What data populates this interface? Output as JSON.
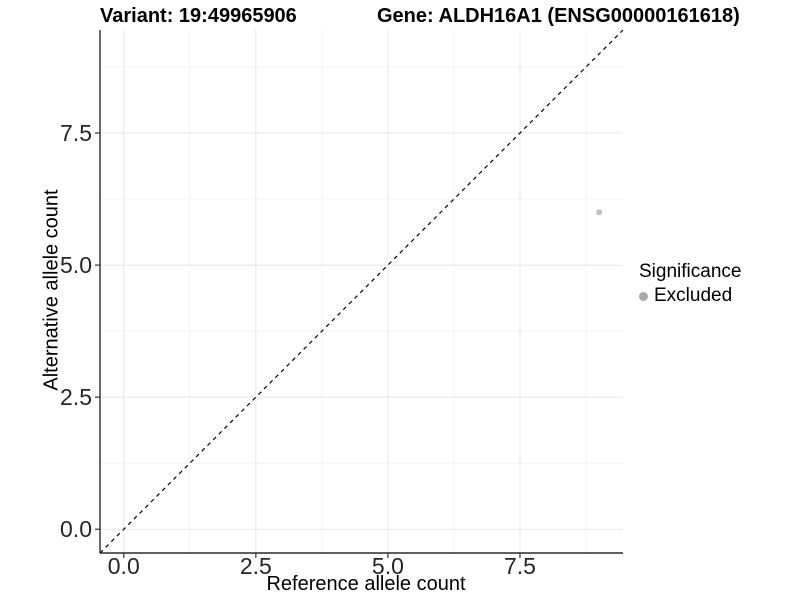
{
  "header": {
    "variant_title": "Variant: 19:49965906",
    "gene_title": "Gene: ALDH16A1 (ENSG00000161618)"
  },
  "chart_data": {
    "type": "scatter",
    "title": "Variant: 19:49965906  |  Gene: ALDH16A1 (ENSG00000161618)",
    "xlabel": "Reference allele count",
    "ylabel": "Alternative allele count",
    "xlim": [
      -0.45,
      9.45
    ],
    "ylim": [
      -0.45,
      9.45
    ],
    "xticks": {
      "values": [
        0,
        2.5,
        5,
        7.5
      ],
      "labels": [
        "0.0",
        "2.5",
        "5.0",
        "7.5"
      ]
    },
    "yticks": {
      "values": [
        0,
        2.5,
        5,
        7.5
      ],
      "labels": [
        "0.0",
        "2.5",
        "5.0",
        "7.5"
      ]
    },
    "minor_xticks": [
      1.25,
      3.75,
      6.25,
      8.75
    ],
    "minor_yticks": [
      1.25,
      3.75,
      6.25,
      8.75
    ],
    "grid": {
      "major_color": "#e8e8e8",
      "minor_color": "#f3f3f3"
    },
    "reference_line": {
      "kind": "identity",
      "slope": 1,
      "intercept": 0,
      "style": "dashed",
      "color": "#000000"
    },
    "series": [
      {
        "name": "Excluded",
        "color": "#c2c2c2",
        "point_radius": 3,
        "points": [
          {
            "x": 9,
            "y": 6
          }
        ]
      }
    ],
    "legend": {
      "title": "Significance",
      "position": "right",
      "items": [
        {
          "label": "Excluded",
          "swatch_color": "#aaaaaa"
        }
      ]
    }
  },
  "colors": {
    "background": "#ffffff",
    "axis_line": "#2b2b2b",
    "tick_mark": "#333333",
    "tick_label": "#262626"
  }
}
